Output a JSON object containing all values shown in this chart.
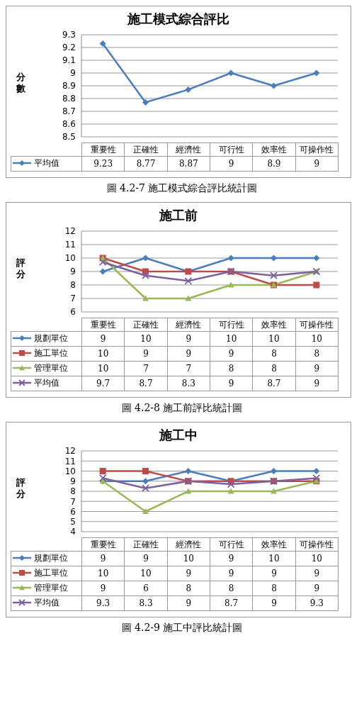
{
  "chart_data": [
    {
      "type": "line",
      "title": "施工模式綜合評比",
      "ylabel": "分數",
      "categories": [
        "重要性",
        "正確性",
        "經濟性",
        "可行性",
        "效率性",
        "可操作性"
      ],
      "series": [
        {
          "name": "平均值",
          "color": "#4a7ebb",
          "marker": "diamond",
          "values": [
            9.23,
            8.77,
            8.87,
            9,
            8.9,
            9
          ]
        }
      ],
      "ylim": [
        8.5,
        9.3
      ],
      "yticks": [
        8.5,
        8.6,
        8.7,
        8.8,
        8.9,
        9,
        9.1,
        9.2,
        9.3
      ],
      "grid": "y",
      "legend": "bottom",
      "data_labels": true,
      "annotations": [
        "圖 4.2-7 施工模式綜合評比統計圖"
      ]
    },
    {
      "type": "line",
      "title": "施工前",
      "ylabel": "評分",
      "categories": [
        "重要性",
        "正確性",
        "經濟性",
        "可行性",
        "效率性",
        "可操作性"
      ],
      "series": [
        {
          "name": "規劃單位",
          "color": "#4a7ebb",
          "marker": "diamond",
          "values": [
            9,
            10,
            9,
            10,
            10,
            10
          ]
        },
        {
          "name": "施工單位",
          "color": "#be4b48",
          "marker": "square",
          "values": [
            10,
            9,
            9,
            9,
            8,
            8
          ]
        },
        {
          "name": "管理單位",
          "color": "#98b954",
          "marker": "triangle",
          "values": [
            10,
            7,
            7,
            8,
            8,
            9
          ]
        },
        {
          "name": "平均值",
          "color": "#7d60a0",
          "marker": "cross",
          "values": [
            9.7,
            8.7,
            8.3,
            9,
            8.7,
            9
          ]
        }
      ],
      "ylim": [
        6,
        12
      ],
      "yticks": [
        6,
        7,
        8,
        9,
        10,
        11,
        12
      ],
      "grid": "y",
      "legend": "bottom",
      "data_labels": true,
      "annotations": [
        "圖 4.2-8 施工前評比統計圖"
      ]
    },
    {
      "type": "line",
      "title": "施工中",
      "ylabel": "評分",
      "categories": [
        "重要性",
        "正確性",
        "經濟性",
        "可行性",
        "效率性",
        "可操作性"
      ],
      "series": [
        {
          "name": "規劃單位",
          "color": "#4a7ebb",
          "marker": "diamond",
          "values": [
            9,
            9,
            10,
            9,
            10,
            10
          ]
        },
        {
          "name": "施工單位",
          "color": "#be4b48",
          "marker": "square",
          "values": [
            10,
            10,
            9,
            9,
            9,
            9
          ]
        },
        {
          "name": "管理單位",
          "color": "#98b954",
          "marker": "triangle",
          "values": [
            9,
            6,
            8,
            8,
            8,
            9
          ]
        },
        {
          "name": "平均值",
          "color": "#7d60a0",
          "marker": "cross",
          "values": [
            9.3,
            8.3,
            9,
            8.7,
            9,
            9.3
          ]
        }
      ],
      "ylim": [
        4,
        12
      ],
      "yticks": [
        4,
        5,
        6,
        7,
        8,
        9,
        10,
        11,
        12
      ],
      "grid": "y",
      "legend": "bottom",
      "data_labels": true,
      "annotations": [
        "圖 4.2-9 施工中評比統計圖"
      ]
    }
  ]
}
